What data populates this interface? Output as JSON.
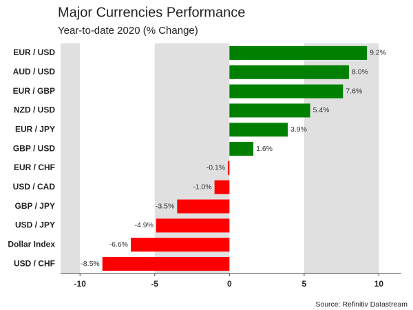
{
  "chart_data": {
    "type": "barh",
    "title": "Major Currencies Performance",
    "subtitle": "Year-to-date 2020 (% Change)",
    "source": "Source: Refinitiv Datastream",
    "categories": [
      "EUR / USD",
      "AUD / USD",
      "EUR / GBP",
      "NZD / USD",
      "EUR / JPY",
      "GBP / USD",
      "EUR / CHF",
      "USD / CAD",
      "GBP / JPY",
      "USD / JPY",
      "Dollar Index",
      "USD / CHF"
    ],
    "values": [
      9.2,
      8.0,
      7.6,
      5.4,
      3.9,
      1.6,
      -0.1,
      -1.0,
      -3.5,
      -4.9,
      -6.6,
      -8.5
    ],
    "value_labels": [
      "9.2%",
      "8.0%",
      "7.6%",
      "5.4%",
      "3.9%",
      "1.6%",
      "-0.1%",
      "-1.0%",
      "-3.5%",
      "-4.9%",
      "-6.6%",
      "-8.5%"
    ],
    "positive_color": "#008000",
    "negative_color": "#ff0000",
    "band_color": "#e0e0e0",
    "xlim": [
      -11.3,
      11.5
    ],
    "xticks": [
      -10,
      -5,
      0,
      5,
      10
    ]
  }
}
